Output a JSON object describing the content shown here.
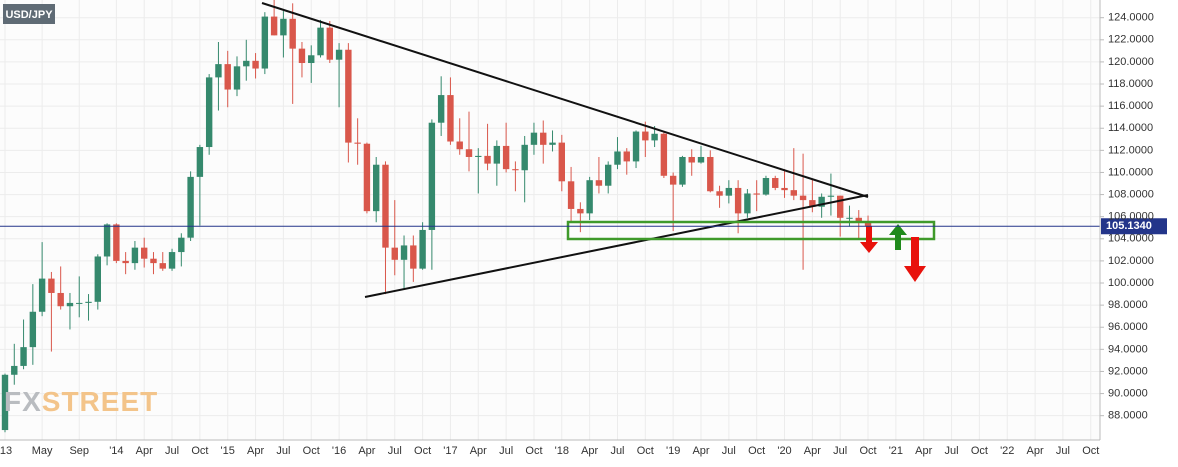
{
  "chart_data": {
    "type": "candlestick",
    "title": "USD/JPY",
    "watermark": {
      "first": "FX",
      "second": "STREET"
    },
    "up_color": "#35896d",
    "down_color": "#d9574b",
    "grid": true,
    "ylim": [
      85.8,
      125.6
    ],
    "yticks": [
      {
        "value": 88,
        "label": "88.0000"
      },
      {
        "value": 90,
        "label": "90.0000"
      },
      {
        "value": 92,
        "label": "92.0000"
      },
      {
        "value": 94,
        "label": "94.0000"
      },
      {
        "value": 96,
        "label": "96.0000"
      },
      {
        "value": 98,
        "label": "98.0000"
      },
      {
        "value": 100,
        "label": "100.0000"
      },
      {
        "value": 102,
        "label": "102.0000"
      },
      {
        "value": 104,
        "label": "104.0000"
      },
      {
        "value": 106,
        "label": "106.0000"
      },
      {
        "value": 108,
        "label": "108.0000"
      },
      {
        "value": 110,
        "label": "110.0000"
      },
      {
        "value": 112,
        "label": "112.0000"
      },
      {
        "value": 114,
        "label": "114.0000"
      },
      {
        "value": 116,
        "label": "116.0000"
      },
      {
        "value": 118,
        "label": "118.0000"
      },
      {
        "value": 120,
        "label": "120.0000"
      },
      {
        "value": 122,
        "label": "122.0000"
      },
      {
        "value": 124,
        "label": "124.0000"
      }
    ],
    "last_price": {
      "value": 105.134,
      "label": "105.1340"
    },
    "categories": [
      "'13",
      null,
      null,
      null,
      "May",
      null,
      null,
      null,
      "Sep",
      null,
      null,
      null,
      "'14",
      null,
      null,
      "Apr",
      null,
      null,
      "Jul",
      null,
      null,
      "Oct",
      null,
      null,
      "'15",
      null,
      null,
      "Apr",
      null,
      null,
      "Jul",
      null,
      null,
      "Oct",
      null,
      null,
      "'16",
      null,
      null,
      "Apr",
      null,
      null,
      "Jul",
      null,
      null,
      "Oct",
      null,
      null,
      "'17",
      null,
      null,
      "Apr",
      null,
      null,
      "Jul",
      null,
      null,
      "Oct",
      null,
      null,
      "'18",
      null,
      null,
      "Apr",
      null,
      null,
      "Jul",
      null,
      null,
      "Oct",
      null,
      null,
      "'19",
      null,
      null,
      "Apr",
      null,
      null,
      "Jul",
      null,
      null,
      "Oct",
      null,
      null,
      "'20",
      null,
      null,
      "Apr",
      null,
      null,
      "Jul",
      null,
      null,
      "Oct",
      null,
      null,
      "'21",
      null,
      null,
      "Apr",
      null,
      null,
      "Jul",
      null,
      null,
      "Oct",
      null,
      null,
      "'22",
      null,
      null,
      "Apr",
      null,
      null,
      "Jul",
      null,
      null,
      "Oct"
    ],
    "open": [
      86.7,
      91.7,
      92.5,
      94.2,
      97.4,
      100.4,
      99.1,
      97.9,
      98.2,
      98.2,
      98.3,
      102.4,
      105.3,
      102.0,
      101.8,
      103.2,
      102.2,
      101.8,
      101.3,
      102.8,
      104.1,
      109.6,
      112.3,
      118.6,
      119.8,
      117.5,
      119.6,
      120.1,
      119.4,
      124.1,
      122.4,
      123.9,
      121.2,
      119.9,
      120.6,
      123.1,
      120.2,
      121.1,
      112.7,
      112.6,
      106.5,
      110.7,
      103.2,
      102.1,
      103.4,
      101.3,
      104.8,
      114.5,
      117.0,
      112.8,
      112.1,
      111.4,
      111.5,
      110.8,
      112.4,
      110.3,
      110.2,
      112.5,
      113.6,
      112.5,
      112.7,
      109.2,
      106.7,
      106.3,
      109.3,
      108.8,
      110.7,
      111.9,
      111.0,
      113.7,
      112.9,
      113.5,
      109.7,
      108.9,
      111.4,
      110.9,
      111.4,
      108.3,
      107.9,
      108.6,
      106.3,
      108.1,
      108.0,
      109.5,
      108.6,
      108.4,
      107.9,
      107.5,
      106.9,
      107.8,
      107.9,
      105.9,
      105.9,
      105.5,
      null,
      null,
      null,
      null,
      null,
      null,
      null,
      null,
      null,
      null,
      null,
      null,
      null,
      null,
      null,
      null,
      null,
      null,
      null,
      null,
      null,
      null,
      null,
      null
    ],
    "high": [
      91.8,
      94.5,
      96.7,
      99.9,
      103.7,
      101.0,
      101.5,
      99.1,
      100.6,
      99.0,
      102.6,
      105.4,
      105.4,
      102.8,
      103.8,
      104.1,
      102.8,
      102.8,
      103.1,
      104.5,
      110.1,
      112.5,
      118.9,
      121.8,
      121.0,
      120.5,
      122.0,
      120.8,
      124.5,
      125.9,
      124.6,
      125.3,
      121.8,
      121.5,
      123.8,
      123.7,
      121.7,
      121.7,
      114.9,
      112.7,
      111.4,
      111.0,
      107.5,
      104.3,
      104.3,
      105.5,
      114.8,
      118.7,
      118.6,
      114.9,
      115.5,
      112.2,
      114.4,
      112.9,
      114.5,
      111.0,
      113.3,
      114.5,
      114.7,
      113.8,
      113.4,
      110.5,
      107.3,
      109.6,
      111.4,
      111.0,
      113.2,
      112.2,
      113.8,
      114.6,
      114.2,
      113.7,
      110.0,
      111.5,
      112.1,
      112.4,
      112.0,
      108.8,
      109.3,
      109.3,
      108.5,
      109.3,
      109.7,
      109.7,
      110.3,
      112.2,
      111.7,
      109.4,
      108.1,
      109.9,
      107.9,
      107.0,
      106.6,
      106.1,
      null,
      null,
      null,
      null,
      null,
      null,
      null,
      null,
      null,
      null,
      null,
      null,
      null,
      null,
      null,
      null,
      null,
      null,
      null,
      null,
      null,
      null,
      null,
      null
    ],
    "low": [
      86.5,
      90.8,
      92.2,
      92.6,
      97.0,
      93.8,
      97.6,
      95.8,
      96.9,
      96.6,
      97.6,
      101.6,
      101.8,
      100.8,
      101.2,
      101.4,
      100.8,
      101.1,
      101.1,
      101.5,
      103.8,
      105.2,
      111.6,
      115.6,
      115.9,
      116.9,
      118.3,
      118.5,
      118.9,
      122.4,
      120.4,
      116.2,
      118.6,
      118.1,
      120.4,
      119.9,
      115.9,
      110.9,
      110.7,
      106.3,
      105.5,
      99.0,
      100.7,
      99.5,
      100.1,
      101.2,
      101.2,
      113.3,
      112.5,
      111.6,
      110.1,
      108.1,
      110.2,
      108.8,
      110.0,
      108.3,
      107.3,
      111.6,
      110.8,
      111.9,
      108.3,
      105.6,
      104.6,
      105.7,
      108.1,
      108.1,
      110.3,
      109.8,
      110.4,
      111.4,
      112.3,
      109.5,
      104.7,
      108.7,
      109.7,
      110.8,
      108.2,
      106.8,
      107.2,
      104.5,
      105.9,
      106.5,
      107.9,
      108.4,
      107.7,
      107.5,
      101.2,
      106.4,
      105.9,
      106.1,
      104.2,
      105.1,
      104.0,
      104.9,
      null,
      null,
      null,
      null,
      null,
      null,
      null,
      null,
      null,
      null,
      null,
      null,
      null,
      null,
      null,
      null,
      null,
      null,
      null,
      null,
      null,
      null,
      null,
      null
    ],
    "close": [
      91.7,
      92.5,
      94.2,
      97.4,
      100.4,
      99.1,
      97.9,
      98.2,
      98.2,
      98.3,
      102.4,
      105.3,
      102.0,
      101.8,
      103.2,
      102.2,
      101.8,
      101.3,
      102.8,
      104.1,
      109.6,
      112.3,
      118.6,
      119.8,
      117.5,
      119.6,
      120.1,
      119.4,
      124.1,
      122.4,
      123.9,
      121.2,
      119.9,
      120.6,
      123.1,
      120.2,
      121.1,
      112.7,
      112.6,
      106.5,
      110.7,
      103.2,
      102.1,
      103.4,
      101.3,
      104.8,
      114.5,
      117.0,
      112.8,
      112.1,
      111.4,
      111.5,
      110.8,
      112.4,
      110.3,
      110.2,
      112.5,
      113.6,
      112.5,
      112.7,
      109.2,
      106.7,
      106.3,
      109.3,
      108.8,
      110.7,
      111.9,
      111.0,
      113.7,
      112.9,
      113.5,
      109.7,
      108.9,
      111.4,
      110.9,
      111.4,
      108.3,
      107.9,
      108.6,
      106.3,
      108.1,
      108.0,
      109.5,
      108.6,
      108.4,
      107.9,
      107.5,
      106.9,
      107.8,
      107.9,
      105.9,
      105.9,
      105.5,
      105.1,
      null,
      null,
      null,
      null,
      null,
      null,
      null,
      null,
      null,
      null,
      null,
      null,
      null,
      null,
      null,
      null,
      null,
      null,
      null,
      null,
      null,
      null,
      null,
      null
    ]
  }
}
